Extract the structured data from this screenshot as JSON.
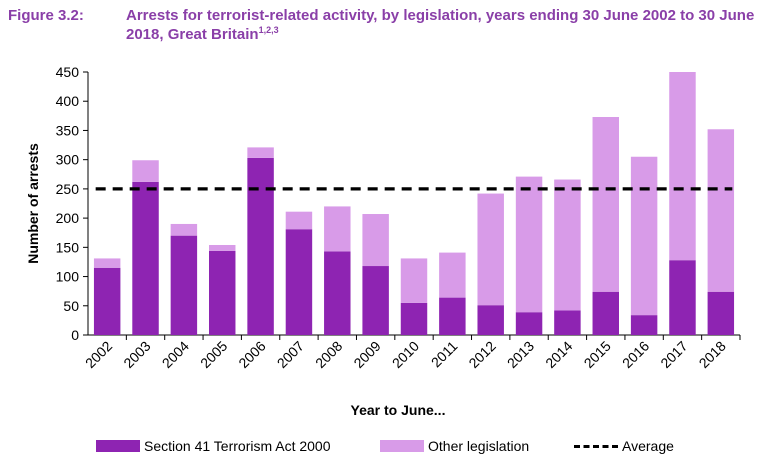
{
  "figure": {
    "number": "Figure 3.2:",
    "title": "Arrests for terrorist-related activity, by legislation, years ending 30 June 2002 to 30 June 2018, Great Britain",
    "footnote_marks": "1,2,3",
    "colors": {
      "title": "#8a3fa8"
    }
  },
  "chart_data": {
    "type": "bar",
    "stacked": true,
    "categories": [
      "2002",
      "2003",
      "2004",
      "2005",
      "2006",
      "2007",
      "2008",
      "2009",
      "2010",
      "2011",
      "2012",
      "2013",
      "2014",
      "2015",
      "2016",
      "2017",
      "2018"
    ],
    "series": [
      {
        "name": "Section 41 Terrorism Act 2000",
        "color": "#8e24b2",
        "values": [
          115,
          262,
          170,
          144,
          303,
          181,
          143,
          118,
          55,
          64,
          51,
          39,
          42,
          74,
          34,
          128,
          74
        ]
      },
      {
        "name": "Other legislation",
        "color": "#d89be8",
        "values": [
          16,
          37,
          20,
          10,
          18,
          30,
          77,
          89,
          76,
          77,
          191,
          232,
          224,
          299,
          271,
          322,
          278
        ]
      },
      {
        "name": "Average",
        "type": "line",
        "style": "dashed",
        "color": "#000000",
        "value": 250
      }
    ],
    "xlabel": "Year to June...",
    "ylabel": "Number of arrests",
    "ylim": [
      0,
      450
    ],
    "yticks": [
      0,
      50,
      100,
      150,
      200,
      250,
      300,
      350,
      400,
      450
    ],
    "grid": false,
    "legend": "bottom"
  }
}
